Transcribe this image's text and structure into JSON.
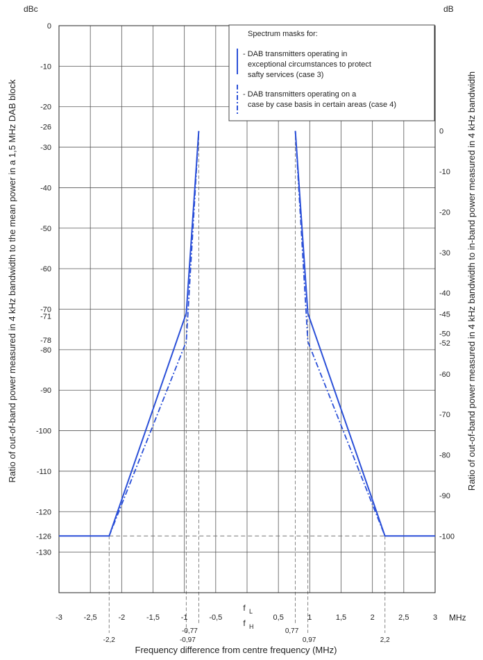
{
  "chart_data": {
    "type": "line",
    "left_axis": {
      "unit": "dBc",
      "label": "Ratio of out-of-band power measured in 4 kHz bandwidth to the mean power in a 1,5 MHz DAB  block",
      "range": [
        -140,
        0
      ],
      "ticks": [
        {
          "v": 0,
          "t": "0"
        },
        {
          "v": -10,
          "t": "-10"
        },
        {
          "v": -20,
          "t": "-20"
        },
        {
          "v": -30,
          "t": "-30"
        },
        {
          "v": -40,
          "t": "-40"
        },
        {
          "v": -50,
          "t": "-50"
        },
        {
          "v": -60,
          "t": "-60"
        },
        {
          "v": -70,
          "t": "-70"
        },
        {
          "v": -80,
          "t": "-80"
        },
        {
          "v": -90,
          "t": "-90"
        },
        {
          "v": -100,
          "t": "-100"
        },
        {
          "v": -110,
          "t": "-110"
        },
        {
          "v": -120,
          "t": "-120"
        },
        {
          "v": -130,
          "t": "-130"
        }
      ],
      "extra_ticks": [
        {
          "v": -26,
          "t": "-26"
        },
        {
          "v": -71,
          "t": "-71"
        },
        {
          "v": -78,
          "t": "-78"
        },
        {
          "v": -126,
          "t": "-126"
        }
      ]
    },
    "right_axis": {
      "unit": "dB",
      "label": "Ratio of out-of-band power measured in 4 kHz bandwidth to in-band power measured in 4 kHz bandwidth",
      "offset": -26,
      "ticks": [
        {
          "v": 0,
          "t": "0"
        },
        {
          "v": -10,
          "t": "-10"
        },
        {
          "v": -20,
          "t": "-20"
        },
        {
          "v": -30,
          "t": "-30"
        },
        {
          "v": -40,
          "t": "-40"
        },
        {
          "v": -50,
          "t": "-50"
        },
        {
          "v": -60,
          "t": "-60"
        },
        {
          "v": -70,
          "t": "-70"
        },
        {
          "v": -80,
          "t": "-80"
        },
        {
          "v": -90,
          "t": "-90"
        }
      ],
      "extra_ticks": [
        {
          "v": -45,
          "t": "-45"
        },
        {
          "v": -52,
          "t": "-52"
        },
        {
          "v": -100,
          "t": "-100"
        }
      ]
    },
    "x_axis": {
      "label": "Frequency difference from centre frequency (MHz)",
      "unit": "MHz",
      "range": [
        -3,
        3
      ],
      "ticks": [
        {
          "v": -3,
          "t": "-3"
        },
        {
          "v": -2.5,
          "t": "-2,5"
        },
        {
          "v": -2,
          "t": "-2"
        },
        {
          "v": -1.5,
          "t": "-1,5"
        },
        {
          "v": -1,
          "t": "-1"
        },
        {
          "v": -0.5,
          "t": "-0,5"
        },
        {
          "v": 0.5,
          "t": "0,5"
        },
        {
          "v": 1,
          "t": "1"
        },
        {
          "v": 1.5,
          "t": "1,5"
        },
        {
          "v": 2,
          "t": "2"
        },
        {
          "v": 2.5,
          "t": "2,5"
        },
        {
          "v": 3,
          "t": "3"
        }
      ],
      "center_labels": [
        "f",
        "L",
        "f",
        "H"
      ],
      "extra_ticks_row1": [
        {
          "v": -0.77,
          "t": "-0,77"
        },
        {
          "v": 0.77,
          "t": "0,77"
        }
      ],
      "extra_ticks_row2": [
        {
          "v": -2.2,
          "t": "-2,2"
        },
        {
          "v": -0.97,
          "t": "-0,97"
        },
        {
          "v": 0.97,
          "t": "0,97"
        },
        {
          "v": 2.2,
          "t": "2,2"
        }
      ]
    },
    "grid": true,
    "legend": {
      "position": "top-right",
      "title": "Spectrum masks for:",
      "entries": [
        {
          "lines": [
            "- DAB transmitters operating in",
            "exceptional circumstances to protect",
            "safty services (case 3)"
          ],
          "style": "solid"
        },
        {
          "lines": [
            "- DAB transmitters operating on a",
            "case by case basis in certain areas (case 4)"
          ],
          "style": "dashdot"
        }
      ]
    },
    "series": [
      {
        "style": "solid",
        "color": "#2a4fd8",
        "x": [
          -3,
          -2.2,
          -0.97,
          -0.77,
          null,
          0.77,
          0.97,
          2.2,
          3
        ],
        "y": [
          -126,
          -126,
          -71,
          -26,
          null,
          -26,
          -71,
          -126,
          -126
        ]
      },
      {
        "style": "dashdot",
        "color": "#2a4fd8",
        "x": [
          -2.2,
          -0.97,
          -0.77,
          null,
          0.77,
          0.97,
          2.2
        ],
        "y": [
          -126,
          -78,
          -26,
          null,
          -26,
          -78,
          -126
        ]
      }
    ],
    "reference_lines": {
      "horizontal": [
        -126
      ],
      "vertical": [
        -2.2,
        -0.97,
        -0.77,
        0.77,
        0.97,
        2.2
      ]
    }
  }
}
